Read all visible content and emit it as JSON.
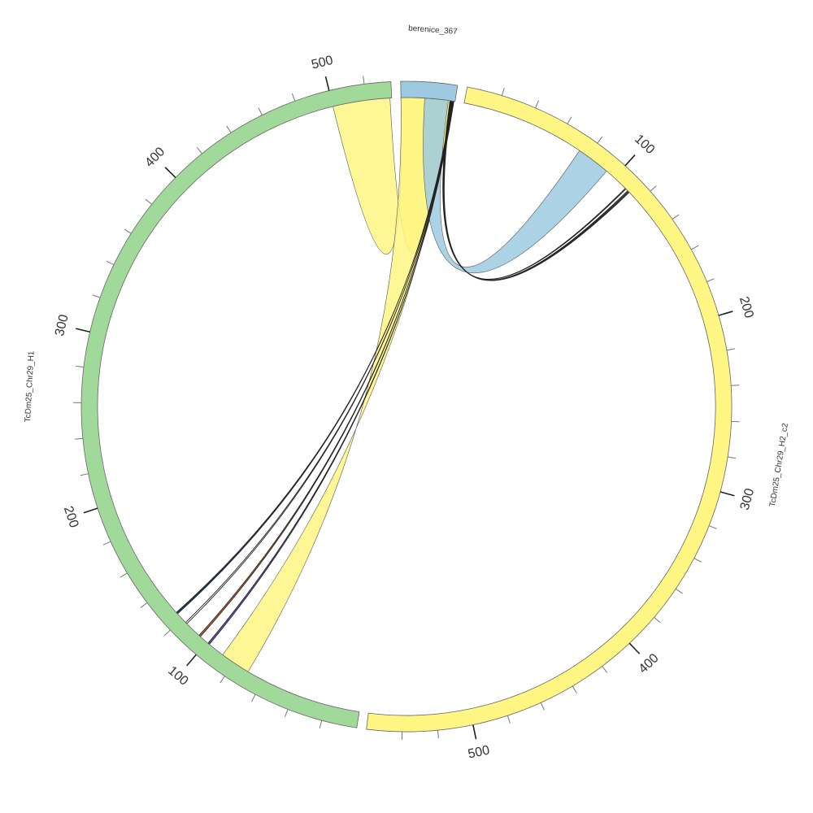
{
  "chart_data": {
    "type": "chord",
    "title": "",
    "segments": [
      {
        "name": "berenice_367",
        "length": 32,
        "color": "#9ecae1",
        "tick_labels": []
      },
      {
        "name": "TcDm25_Chr29_H2_c2",
        "length": 560,
        "color": "#fff684",
        "tick_labels": [
          "100",
          "200",
          "300",
          "400",
          "500"
        ]
      },
      {
        "name": "TcDm25_Chr29_H1",
        "length": 535,
        "color": "#a1d99b",
        "tick_labels": [
          "100",
          "200",
          "300",
          "400",
          "500"
        ]
      }
    ],
    "links": [
      {
        "source": "berenice_367",
        "source_range": [
          0,
          30
        ],
        "target": "TcDm25_Chr29_H1",
        "target_range": [
          534,
          500
        ],
        "color": "#fff684"
      },
      {
        "source": "berenice_367",
        "source_range": [
          0,
          30
        ],
        "target": "TcDm25_Chr29_H1",
        "target_range": [
          88,
          70
        ],
        "color": "#fff684"
      },
      {
        "source": "berenice_367",
        "source_range": [
          14,
          28
        ],
        "target": "TcDm25_Chr29_H2_c2",
        "target_range": [
          74,
          94
        ],
        "color": "#9ecae1"
      },
      {
        "source": "berenice_367",
        "source_range": [
          29.0,
          29.4
        ],
        "target": "TcDm25_Chr29_H2_c2",
        "target_range": [
          109.0,
          109.5
        ],
        "color": "#fff684"
      },
      {
        "source": "berenice_367",
        "source_range": [
          29.5,
          29.8
        ],
        "target": "TcDm25_Chr29_H2_c2",
        "target_range": [
          111.0,
          111.5
        ],
        "color": "#fff684"
      },
      {
        "source": "berenice_367",
        "source_range": [
          29.9,
          30.1
        ],
        "target": "TcDm25_Chr29_H2_c2",
        "target_range": [
          112.0,
          112.3
        ],
        "color": "#f5c242"
      },
      {
        "source": "berenice_367",
        "source_range": [
          30.2,
          30.4
        ],
        "target": "TcDm25_Chr29_H1",
        "target_range": [
          125.0,
          124.0
        ],
        "color": "#1f3b6e"
      },
      {
        "source": "berenice_367",
        "source_range": [
          30.5,
          30.7
        ],
        "target": "TcDm25_Chr29_H1",
        "target_range": [
          117.0,
          116.0
        ],
        "color": "#ffffff"
      },
      {
        "source": "berenice_367",
        "source_range": [
          30.8,
          31.0
        ],
        "target": "TcDm25_Chr29_H1",
        "target_range": [
          106.0,
          105.0
        ],
        "color": "#d46a2a"
      },
      {
        "source": "berenice_367",
        "source_range": [
          31.1,
          31.3
        ],
        "target": "TcDm25_Chr29_H1",
        "target_range": [
          99.0,
          98.0
        ],
        "color": "#6a5acd"
      }
    ]
  }
}
